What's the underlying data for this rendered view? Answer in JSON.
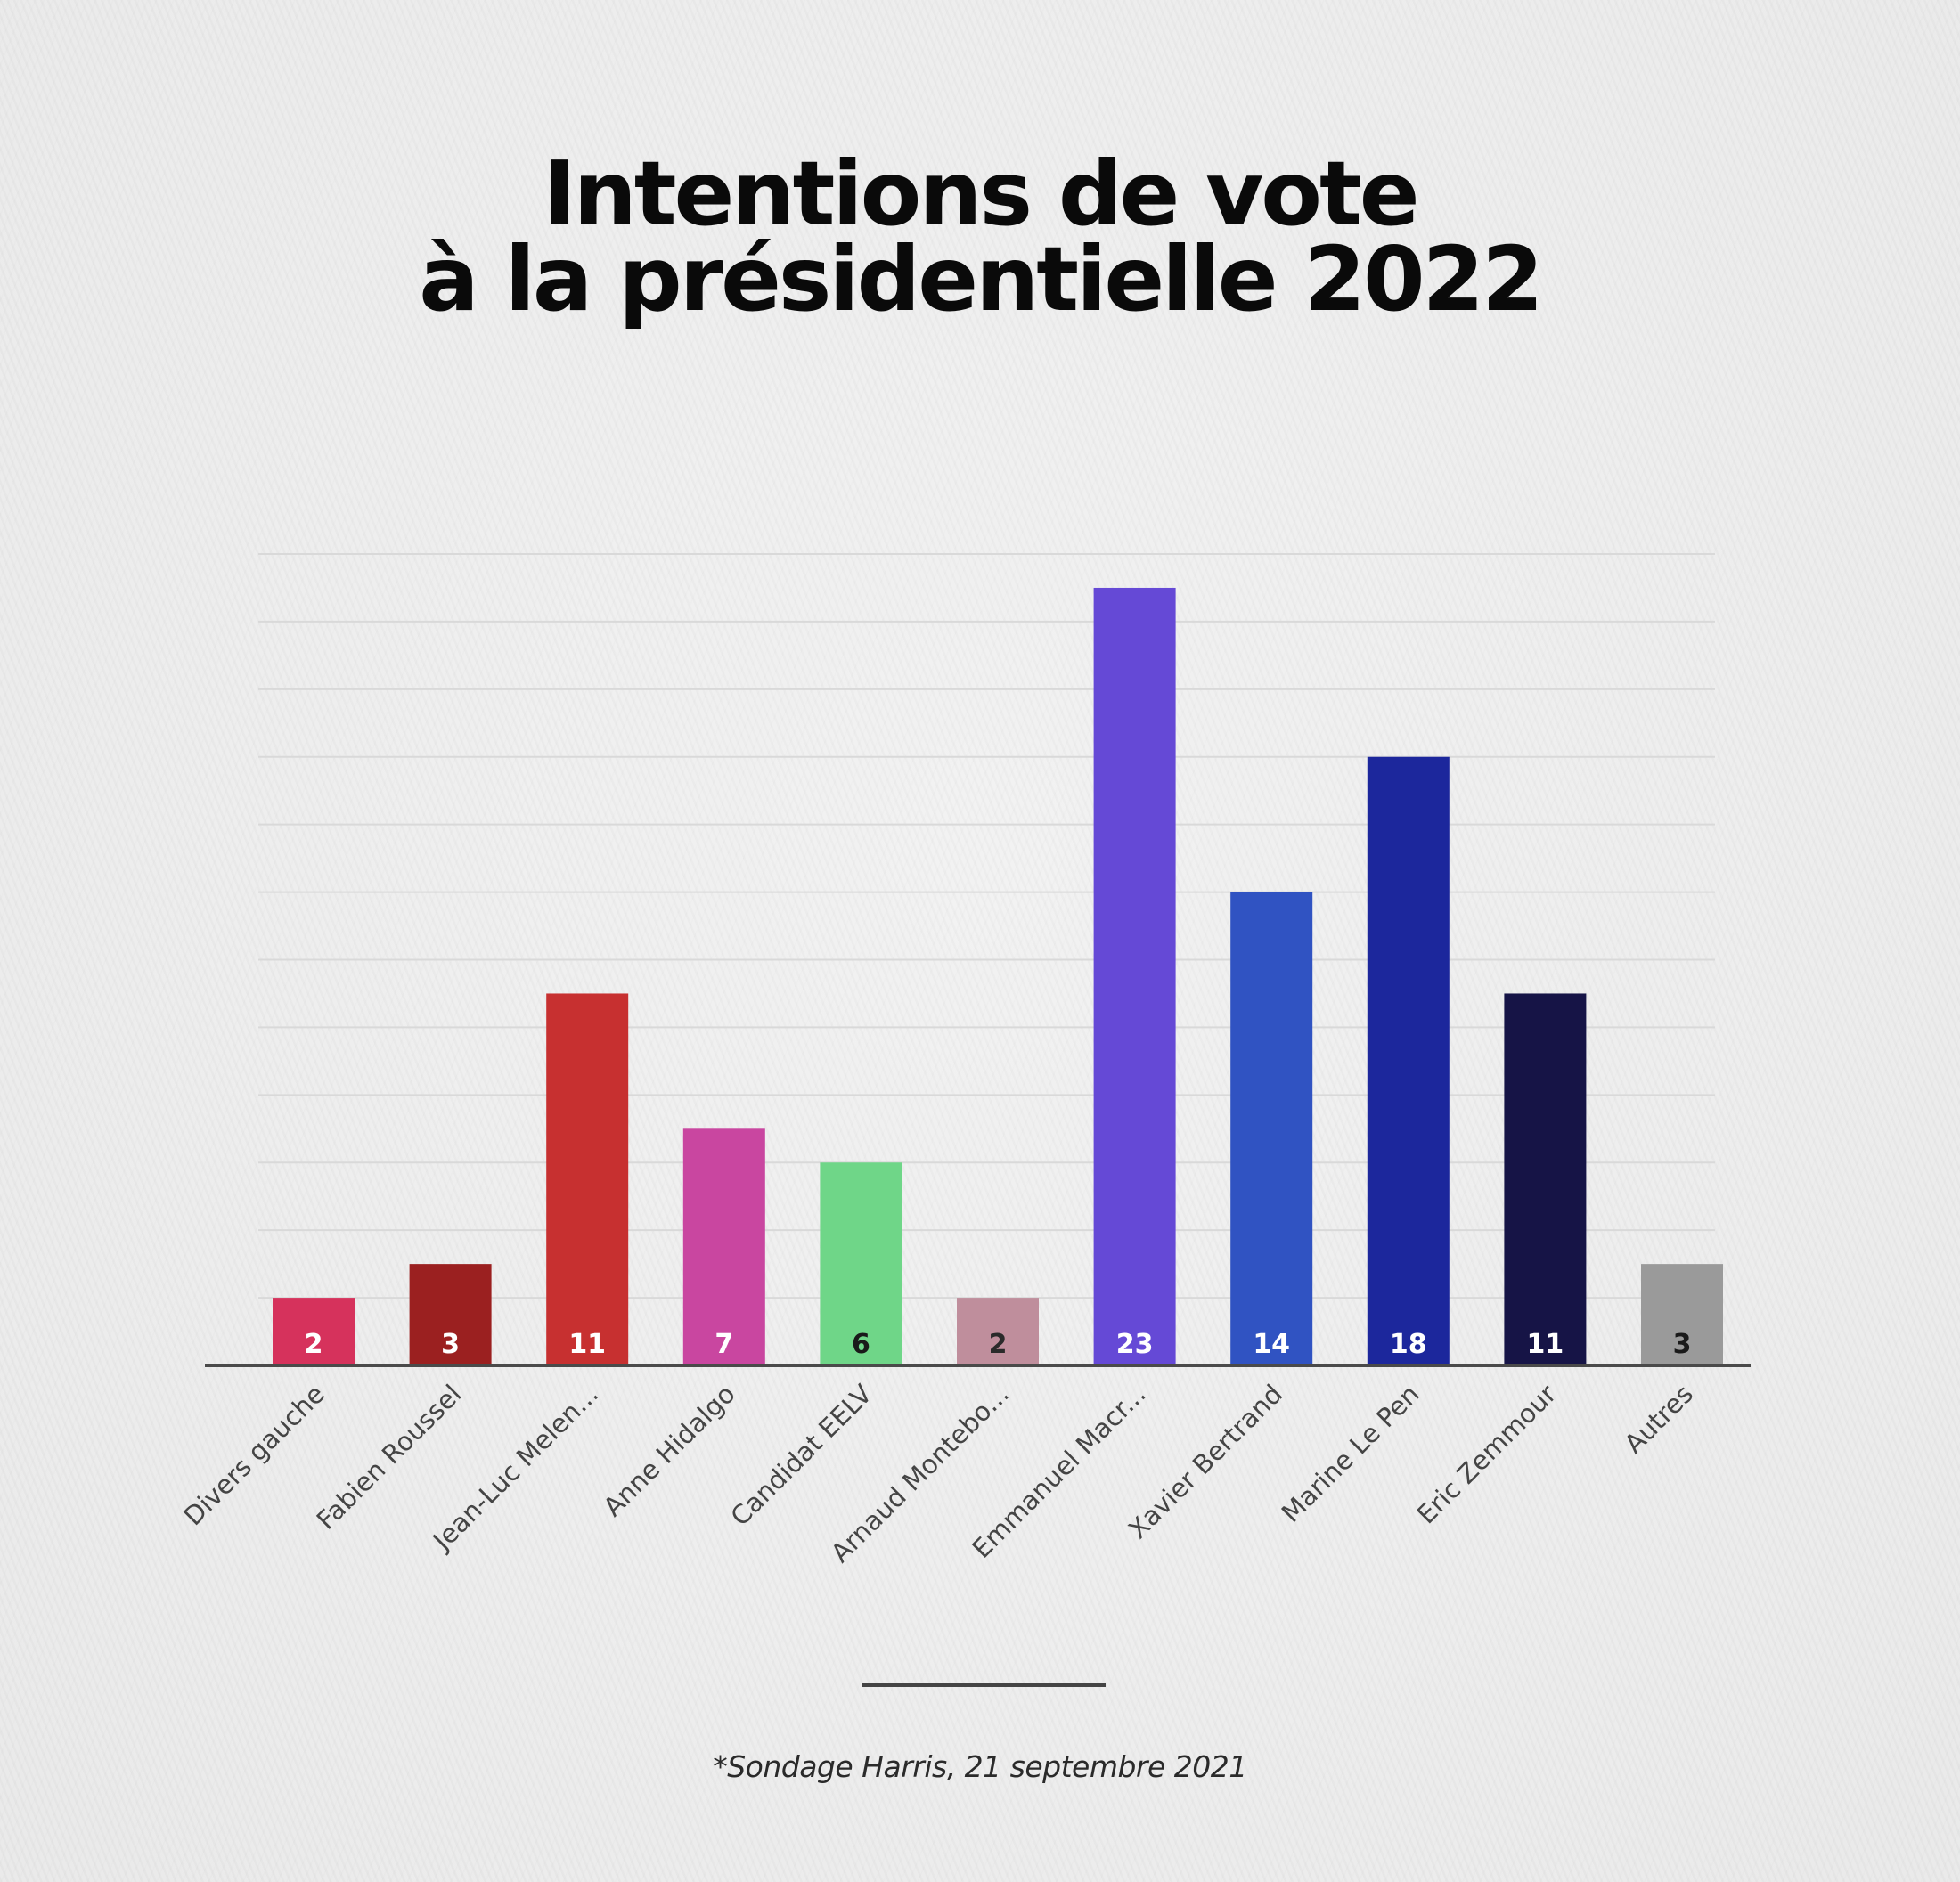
{
  "title": {
    "line1": "Intentions de vote",
    "line2": "à la présidentielle 2022"
  },
  "source": "*Sondage Harris, 21 septembre 2021",
  "chart_data": {
    "type": "bar",
    "title": "Intentions de vote à la présidentielle 2022",
    "xlabel": "",
    "ylabel": "",
    "ylim": [
      0,
      24
    ],
    "grid": true,
    "legend": "none",
    "categories": [
      "Divers gauche",
      "Fabien Roussel",
      "Jean-Luc Melen...",
      "Anne Hidalgo",
      "Candidat EELV",
      "Arnaud Montebo...",
      "Emmanuel Macr...",
      "Xavier Bertrand",
      "Marine Le Pen",
      "Eric Zemmour",
      "Autres"
    ],
    "values": [
      2,
      3,
      11,
      7,
      6,
      2,
      23,
      14,
      18,
      11,
      3
    ],
    "data_labels": [
      "2",
      "3",
      "11",
      "7",
      "6",
      "2",
      "23",
      "14",
      "18",
      "11",
      "3"
    ],
    "colors": [
      "#d6325c",
      "#9b2020",
      "#c73030",
      "#c946a0",
      "#6fd688",
      "#bf8e9c",
      "#6549d6",
      "#3053c2",
      "#1c279c",
      "#161446",
      "#9a9a9a"
    ],
    "label_colors": [
      "#ffffff",
      "#ffffff",
      "#ffffff",
      "#ffffff",
      "#1a1a1a",
      "#2a2a2a",
      "#ffffff",
      "#ffffff",
      "#ffffff",
      "#ffffff",
      "#1a1a1a"
    ],
    "note": "*Sondage Harris, 21 septembre 2021"
  }
}
